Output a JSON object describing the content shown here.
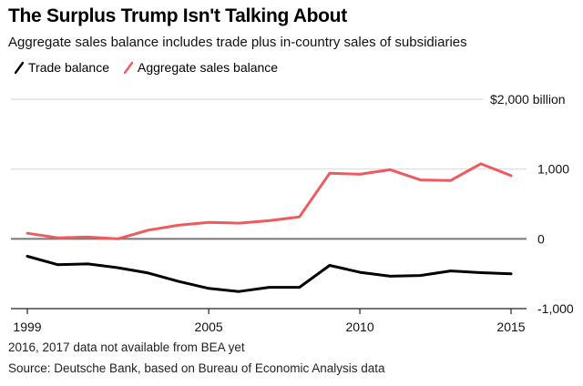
{
  "chart_data": {
    "type": "line",
    "title": "The Surplus Trump Isn't Talking About",
    "subtitle": "Aggregate sales balance includes trade plus in-country sales of subsidiaries",
    "xlabel": "",
    "ylabel": "",
    "x": [
      1999,
      2000,
      2001,
      2002,
      2003,
      2004,
      2005,
      2006,
      2007,
      2008,
      2009,
      2010,
      2011,
      2012,
      2013,
      2014,
      2015
    ],
    "xticks": [
      1999,
      2005,
      2010,
      2015
    ],
    "xtick_labels": [
      "1999",
      "2005",
      "2010",
      "2015"
    ],
    "ylim": [
      -1000,
      2000
    ],
    "yticks": [
      2000,
      1000,
      0,
      -1000
    ],
    "ytick_labels": [
      "$2,000 billion",
      "1,000",
      "0",
      "-1,000"
    ],
    "grid": true,
    "legend_position": "top-left",
    "series": [
      {
        "name": "Trade balance",
        "color": "#000000",
        "values": [
          -250,
          -370,
          -360,
          -415,
          -490,
          -610,
          -710,
          -755,
          -695,
          -695,
          -380,
          -480,
          -535,
          -525,
          -460,
          -485,
          -500
        ]
      },
      {
        "name": "Aggregate sales balance",
        "color": "#f0595e",
        "values": [
          80,
          15,
          25,
          0,
          125,
          195,
          235,
          225,
          260,
          315,
          940,
          925,
          990,
          845,
          835,
          1075,
          905
        ]
      }
    ],
    "notes": [
      "2016, 2017 data not available from BEA yet",
      "Source: Deutsche Bank, based on Bureau of Economic Analysis data"
    ]
  }
}
